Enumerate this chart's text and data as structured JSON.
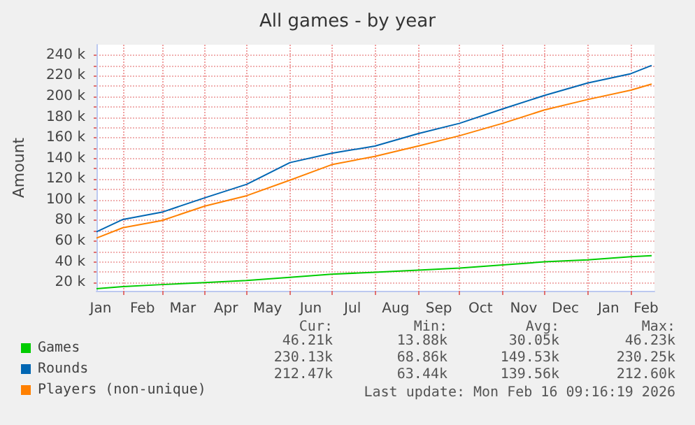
{
  "chart_data": {
    "type": "line",
    "title": "All games - by year",
    "ylabel": "Amount",
    "x": [
      "2025-01-13",
      "2025-02-01",
      "2025-03-01",
      "2025-04-01",
      "2025-05-01",
      "2025-06-01",
      "2025-07-01",
      "2025-08-01",
      "2025-09-01",
      "2025-10-01",
      "2025-11-01",
      "2025-12-01",
      "2026-01-01",
      "2026-02-01",
      "2026-02-16"
    ],
    "series": [
      {
        "name": "Games",
        "color": "#00cc00",
        "values": [
          14000,
          16000,
          18000,
          20000,
          22000,
          25000,
          28000,
          30000,
          32000,
          34000,
          37000,
          40000,
          42000,
          45000,
          46000
        ]
      },
      {
        "name": "Rounds",
        "color": "#0066b3",
        "values": [
          69000,
          81000,
          88000,
          102000,
          115000,
          136000,
          145000,
          152000,
          164000,
          174000,
          188000,
          201000,
          213000,
          222000,
          230000
        ]
      },
      {
        "name": "Players (non-unique)",
        "color": "#ff8000",
        "values": [
          63000,
          73000,
          80000,
          94000,
          104000,
          119000,
          134000,
          142000,
          152000,
          162000,
          174000,
          187000,
          197000,
          206000,
          212000
        ]
      }
    ],
    "xlim": [
      "2025-01-13",
      "2026-02-18"
    ],
    "xticks": [
      {
        "value": "2025-01-16",
        "label": "Jan"
      },
      {
        "value": "2025-02-01",
        "label": null
      },
      {
        "value": "2025-02-15",
        "label": "Feb"
      },
      {
        "value": "2025-03-01",
        "label": null
      },
      {
        "value": "2025-03-16",
        "label": "Mar"
      },
      {
        "value": "2025-04-01",
        "label": null
      },
      {
        "value": "2025-04-16",
        "label": "Apr"
      },
      {
        "value": "2025-05-01",
        "label": null
      },
      {
        "value": "2025-05-16",
        "label": "May"
      },
      {
        "value": "2025-06-01",
        "label": null
      },
      {
        "value": "2025-06-16",
        "label": "Jun"
      },
      {
        "value": "2025-07-01",
        "label": null
      },
      {
        "value": "2025-07-16",
        "label": "Jul"
      },
      {
        "value": "2025-08-01",
        "label": null
      },
      {
        "value": "2025-08-16",
        "label": "Aug"
      },
      {
        "value": "2025-09-01",
        "label": null
      },
      {
        "value": "2025-09-16",
        "label": "Sep"
      },
      {
        "value": "2025-10-01",
        "label": null
      },
      {
        "value": "2025-10-16",
        "label": "Oct"
      },
      {
        "value": "2025-11-01",
        "label": null
      },
      {
        "value": "2025-11-16",
        "label": "Nov"
      },
      {
        "value": "2025-12-01",
        "label": null
      },
      {
        "value": "2025-12-16",
        "label": "Dec"
      },
      {
        "value": "2026-01-01",
        "label": null
      },
      {
        "value": "2026-01-16",
        "label": "Jan"
      },
      {
        "value": "2026-02-01",
        "label": null
      },
      {
        "value": "2026-02-12",
        "label": "Feb"
      }
    ],
    "ylim": [
      12000,
      250000
    ],
    "yticks": [
      {
        "value": 20000,
        "label": "20 k"
      },
      {
        "value": 30000,
        "label": null
      },
      {
        "value": 40000,
        "label": "40 k"
      },
      {
        "value": 50000,
        "label": null
      },
      {
        "value": 60000,
        "label": "60 k"
      },
      {
        "value": 70000,
        "label": null
      },
      {
        "value": 80000,
        "label": "80 k"
      },
      {
        "value": 90000,
        "label": null
      },
      {
        "value": 100000,
        "label": "100 k"
      },
      {
        "value": 110000,
        "label": null
      },
      {
        "value": 120000,
        "label": "120 k"
      },
      {
        "value": 130000,
        "label": null
      },
      {
        "value": 140000,
        "label": "140 k"
      },
      {
        "value": 150000,
        "label": null
      },
      {
        "value": 160000,
        "label": "160 k"
      },
      {
        "value": 170000,
        "label": null
      },
      {
        "value": 180000,
        "label": "180 k"
      },
      {
        "value": 190000,
        "label": null
      },
      {
        "value": 200000,
        "label": "200 k"
      },
      {
        "value": 210000,
        "label": null
      },
      {
        "value": 220000,
        "label": "220 k"
      },
      {
        "value": 230000,
        "label": null
      },
      {
        "value": 240000,
        "label": "240 k"
      }
    ],
    "grid": true,
    "legend": "bottom left",
    "marker": "none",
    "line_style": "solid",
    "annotations": [
      "Cur:",
      "Min:",
      "Avg:",
      "Max:",
      "46.21k",
      "13.88k",
      "30.05k",
      "46.23k",
      "230.13k",
      "68.86k",
      "149.53k",
      "230.25k",
      "212.47k",
      "63.44k",
      "139.56k",
      "212.60k",
      "Last update: Mon Feb 16 09:16:19 2026"
    ]
  }
}
